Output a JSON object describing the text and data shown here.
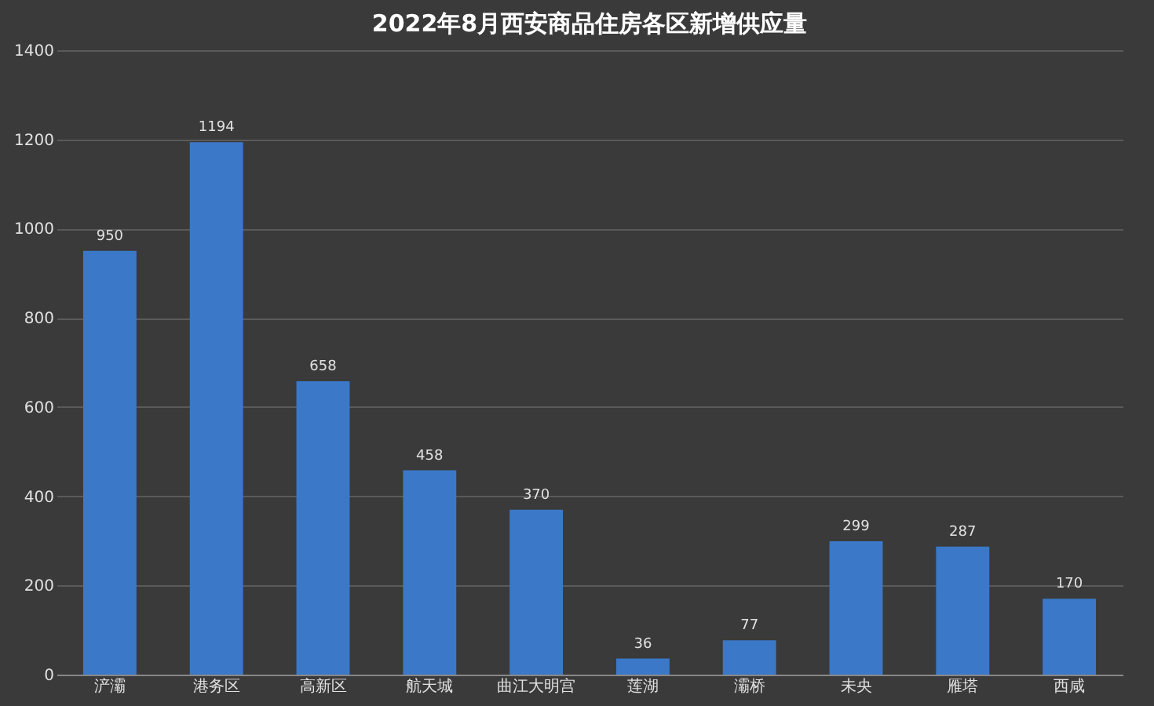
{
  "chart_data": {
    "type": "bar",
    "title": "2022年8月西安商品住房各区新增供应量",
    "categories": [
      "浐灞",
      "港务区",
      "高新区",
      "航天城",
      "曲江大明宫",
      "莲湖",
      "灞桥",
      "未央",
      "雁塔",
      "西咸"
    ],
    "values": [
      950,
      1194,
      658,
      458,
      370,
      36,
      77,
      299,
      287,
      170
    ],
    "color": "#3b78c8",
    "ylim": [
      0,
      1400
    ],
    "yticks": [
      0,
      200,
      400,
      600,
      800,
      1000,
      1200,
      1400
    ],
    "grid": "y",
    "data_labels": true
  }
}
